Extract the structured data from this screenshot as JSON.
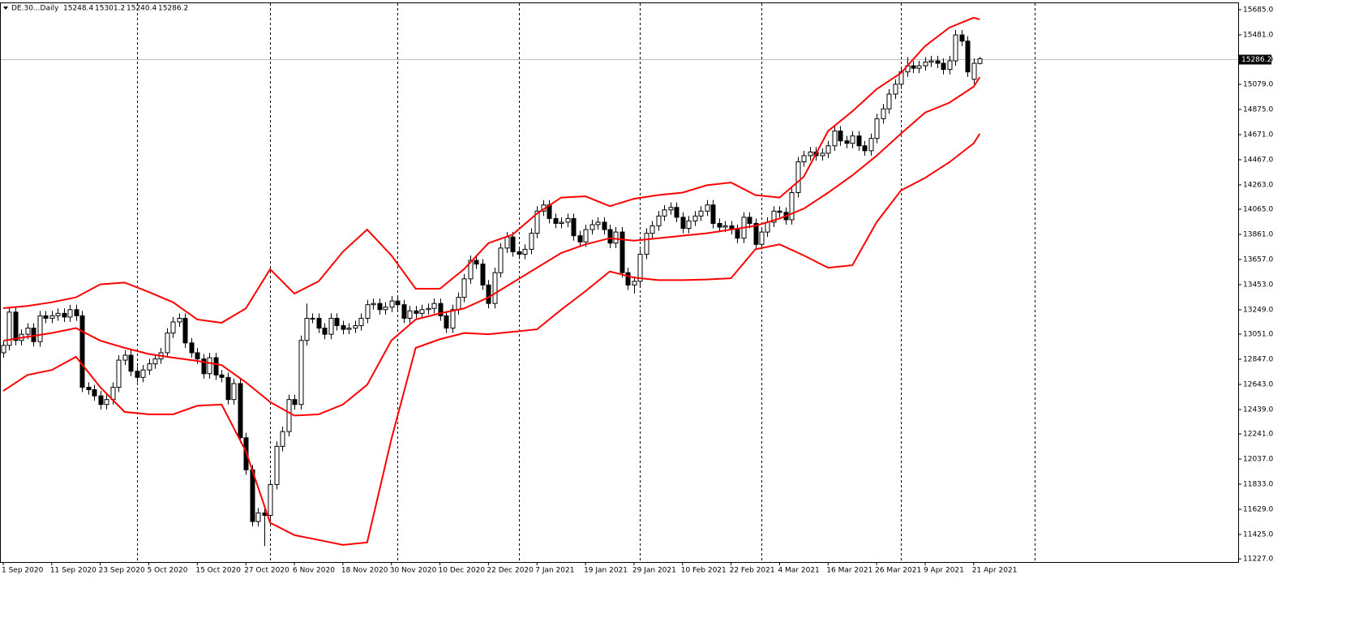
{
  "chart_data": {
    "type": "candlestick",
    "title": "DE.30...Daily",
    "categories": [
      "1 Sep 2020",
      null,
      null,
      null,
      null,
      null,
      null,
      null,
      "11 Sep 2020",
      null,
      null,
      null,
      null,
      null,
      null,
      null,
      "23 Sep 2020",
      null,
      null,
      null,
      null,
      null,
      null,
      null,
      "5 Oct 2020",
      null,
      null,
      null,
      null,
      null,
      null,
      null,
      "15 Oct 2020",
      null,
      null,
      null,
      null,
      null,
      null,
      null,
      "27 Oct 2020",
      null,
      null,
      null,
      null,
      null,
      null,
      null,
      "6 Nov 2020",
      null,
      null,
      null,
      null,
      null,
      null,
      null,
      "18 Nov 2020",
      null,
      null,
      null,
      null,
      null,
      null,
      null,
      "30 Nov 2020",
      null,
      null,
      null,
      null,
      null,
      null,
      null,
      "10 Dec 2020",
      null,
      null,
      null,
      null,
      null,
      null,
      null,
      "22 Dec 2020",
      null,
      null,
      null,
      null,
      null,
      null,
      null,
      "7 Jan 2021",
      null,
      null,
      null,
      null,
      null,
      null,
      null,
      "19 Jan 2021",
      null,
      null,
      null,
      null,
      null,
      null,
      null,
      "29 Jan 2021",
      null,
      null,
      null,
      null,
      null,
      null,
      null,
      "10 Feb 2021",
      null,
      null,
      null,
      null,
      null,
      null,
      null,
      "22 Feb 2021",
      null,
      null,
      null,
      null,
      null,
      null,
      null,
      "4 Mar 2021",
      null,
      null,
      null,
      null,
      null,
      null,
      null,
      "16 Mar 2021",
      null,
      null,
      null,
      null,
      null,
      null,
      null,
      "26 Mar 2021",
      null,
      null,
      null,
      null,
      null,
      null,
      null,
      "9 Apr 2021",
      null,
      null,
      null,
      null,
      null,
      null,
      null,
      "21 Apr 2021",
      null
    ],
    "open": [
      12900,
      12960,
      13230,
      13000,
      13050,
      13100,
      12990,
      13200,
      13180,
      13200,
      13220,
      13190,
      13250,
      13200,
      12620,
      12600,
      12550,
      12480,
      12520,
      12620,
      12840,
      12880,
      12750,
      12700,
      12760,
      12810,
      12850,
      12900,
      13060,
      13150,
      13180,
      12980,
      12900,
      12850,
      12730,
      12860,
      12720,
      12700,
      12520,
      12650,
      12210,
      11950,
      11530,
      11600,
      11580,
      11830,
      12140,
      12260,
      12520,
      12480,
      13000,
      13180,
      13180,
      13100,
      13050,
      13180,
      13120,
      13090,
      13100,
      13120,
      13180,
      13290,
      13300,
      13250,
      13270,
      13320,
      13290,
      13180,
      13240,
      13220,
      13250,
      13260,
      13300,
      13200,
      13100,
      13250,
      13350,
      13500,
      13650,
      13620,
      13450,
      13300,
      13550,
      13750,
      13840,
      13720,
      13700,
      13740,
      13870,
      14050,
      14100,
      13990,
      13950,
      13960,
      13990,
      13850,
      13800,
      13900,
      13940,
      13960,
      13900,
      13790,
      13880,
      13550,
      13450,
      13480,
      13700,
      13870,
      13930,
      14010,
      14060,
      14080,
      14000,
      13910,
      13970,
      14010,
      14050,
      14100,
      13950,
      13920,
      13930,
      13900,
      13830,
      14000,
      13950,
      13780,
      13880,
      13960,
      14050,
      14040,
      13980,
      14200,
      14450,
      14500,
      14530,
      14500,
      14520,
      14580,
      14700,
      14620,
      14600,
      14660,
      14580,
      14540,
      14640,
      14800,
      14880,
      15000,
      15080,
      15180,
      15230,
      15210,
      15230,
      15260,
      15270,
      15250,
      15200,
      15270,
      15480,
      15430,
      15120,
      15248.4
    ],
    "high": [
      13000,
      13270,
      13270,
      13090,
      13140,
      13140,
      13240,
      13240,
      13240,
      13260,
      13260,
      13290,
      13290,
      13240,
      12660,
      12640,
      12590,
      12560,
      12660,
      12880,
      12920,
      12920,
      12790,
      12800,
      12850,
      12890,
      12940,
      13100,
      13190,
      13220,
      13220,
      13020,
      12940,
      12890,
      12900,
      12900,
      12760,
      12740,
      12690,
      12690,
      12250,
      11990,
      11640,
      11640,
      11870,
      12180,
      12300,
      12560,
      12560,
      13040,
      13300,
      13220,
      13220,
      13140,
      13220,
      13220,
      13160,
      13140,
      13160,
      13220,
      13330,
      13340,
      13340,
      13310,
      13360,
      13360,
      13330,
      13280,
      13280,
      13290,
      13300,
      13340,
      13340,
      13240,
      13290,
      13390,
      13540,
      13690,
      13690,
      13660,
      13490,
      13590,
      13790,
      13880,
      13880,
      13760,
      13780,
      13910,
      14090,
      14140,
      14140,
      14030,
      14000,
      14030,
      14030,
      13890,
      13940,
      13980,
      14000,
      14000,
      13940,
      13920,
      13920,
      13590,
      13520,
      13740,
      13910,
      13970,
      14050,
      14100,
      14120,
      14120,
      14040,
      14010,
      14050,
      14090,
      14140,
      14140,
      13990,
      13970,
      13970,
      13940,
      14040,
      14040,
      13990,
      13920,
      14000,
      14090,
      14090,
      14080,
      14240,
      14490,
      14540,
      14570,
      14570,
      14560,
      14620,
      14740,
      14740,
      14660,
      14700,
      14700,
      14620,
      14680,
      14840,
      14920,
      15040,
      15120,
      15220,
      15300,
      15270,
      15270,
      15300,
      15310,
      15310,
      15290,
      15310,
      15520,
      15520,
      15470,
      15290,
      15301.2
    ],
    "low": [
      12860,
      12920,
      12960,
      12960,
      13010,
      12950,
      12950,
      13140,
      13140,
      13160,
      13150,
      13150,
      13160,
      12580,
      12560,
      12510,
      12440,
      12440,
      12480,
      12580,
      12800,
      12710,
      12660,
      12660,
      12720,
      12770,
      12810,
      12860,
      13020,
      13110,
      12940,
      12860,
      12810,
      12690,
      12690,
      12680,
      12660,
      12480,
      12480,
      12170,
      11910,
      11490,
      11490,
      11330,
      11540,
      11790,
      12100,
      12220,
      12440,
      12440,
      12960,
      13140,
      13060,
      13010,
      13010,
      13080,
      13050,
      13050,
      13060,
      13080,
      13140,
      13250,
      13210,
      13210,
      13230,
      13250,
      13140,
      13140,
      13180,
      13180,
      13210,
      13220,
      13160,
      13060,
      13060,
      13210,
      13310,
      13460,
      13580,
      13410,
      13260,
      13260,
      13510,
      13710,
      13680,
      13660,
      13660,
      13700,
      13830,
      14010,
      13950,
      13910,
      13910,
      13920,
      13810,
      13760,
      13760,
      13860,
      13900,
      13860,
      13750,
      13750,
      13510,
      13410,
      13380,
      13440,
      13660,
      13830,
      13890,
      13970,
      14020,
      13960,
      13870,
      13870,
      13930,
      13970,
      14010,
      13910,
      13880,
      13880,
      13860,
      13790,
      13790,
      13910,
      13740,
      13740,
      13840,
      13920,
      14000,
      13940,
      13940,
      14160,
      14410,
      14460,
      14460,
      14460,
      14480,
      14540,
      14580,
      14560,
      14560,
      14540,
      14500,
      14500,
      14600,
      14760,
      14840,
      14960,
      15040,
      15140,
      15170,
      15170,
      15190,
      15220,
      15210,
      15160,
      15160,
      15230,
      15390,
      15140,
      15080,
      15240.4
    ],
    "close": [
      12960,
      13230,
      13000,
      13050,
      13100,
      12990,
      13200,
      13180,
      13200,
      13220,
      13190,
      13250,
      13200,
      12620,
      12600,
      12550,
      12480,
      12520,
      12620,
      12840,
      12880,
      12750,
      12700,
      12760,
      12810,
      12850,
      12900,
      13060,
      13150,
      13180,
      12980,
      12900,
      12850,
      12730,
      12860,
      12720,
      12700,
      12520,
      12650,
      12210,
      11950,
      11530,
      11600,
      11580,
      11830,
      12140,
      12260,
      12520,
      12480,
      13000,
      13180,
      13180,
      13100,
      13050,
      13180,
      13120,
      13090,
      13100,
      13120,
      13180,
      13290,
      13300,
      13250,
      13270,
      13320,
      13290,
      13180,
      13240,
      13220,
      13250,
      13260,
      13300,
      13200,
      13100,
      13250,
      13350,
      13500,
      13650,
      13620,
      13450,
      13300,
      13550,
      13750,
      13840,
      13720,
      13700,
      13740,
      13870,
      14050,
      14100,
      13990,
      13950,
      13960,
      13990,
      13850,
      13800,
      13900,
      13940,
      13960,
      13900,
      13790,
      13880,
      13550,
      13450,
      13480,
      13700,
      13870,
      13930,
      14010,
      14060,
      14080,
      14000,
      13910,
      13970,
      14010,
      14050,
      14100,
      13950,
      13920,
      13930,
      13900,
      13830,
      14000,
      13950,
      13780,
      13880,
      13960,
      14050,
      14040,
      13980,
      14200,
      14450,
      14500,
      14530,
      14500,
      14520,
      14580,
      14700,
      14620,
      14600,
      14660,
      14580,
      14540,
      14640,
      14800,
      14880,
      15000,
      15080,
      15180,
      15230,
      15210,
      15230,
      15260,
      15270,
      15250,
      15200,
      15270,
      15480,
      15430,
      15180,
      15250,
      15286.2
    ],
    "bands": {
      "x": [
        0,
        4,
        8,
        12,
        16,
        20,
        24,
        28,
        32,
        36,
        40,
        44,
        48,
        52,
        56,
        60,
        64,
        68,
        72,
        76,
        80,
        84,
        88,
        92,
        96,
        100,
        104,
        108,
        112,
        116,
        120,
        124,
        128,
        132,
        136,
        140,
        144,
        148,
        152,
        156,
        160,
        161
      ],
      "series": [
        {
          "color": "#ff0000",
          "values": [
            13262,
            13280,
            13310,
            13350,
            13455,
            13470,
            13393,
            13310,
            13170,
            13143,
            13260,
            13578,
            13380,
            13480,
            13720,
            13900,
            13690,
            13420,
            13420,
            13580,
            13790,
            13860,
            14030,
            14160,
            14170,
            14090,
            14150,
            14180,
            14200,
            14260,
            14282,
            14180,
            14160,
            14330,
            14700,
            14860,
            15040,
            15171,
            15390,
            15540,
            15620,
            15606
          ]
        },
        {
          "color": "#ff0000",
          "values": [
            12998,
            13030,
            13060,
            13100,
            12998,
            12940,
            12890,
            12860,
            12834,
            12800,
            12660,
            12500,
            12390,
            12400,
            12480,
            12640,
            13000,
            13170,
            13220,
            13260,
            13350,
            13470,
            13590,
            13710,
            13780,
            13830,
            13810,
            13830,
            13850,
            13870,
            13900,
            13930,
            13990,
            14070,
            14200,
            14340,
            14500,
            14678,
            14850,
            14930,
            15060,
            15138
          ]
        },
        {
          "color": "#ff0000",
          "values": [
            12590,
            12720,
            12760,
            12867,
            12620,
            12420,
            12400,
            12400,
            12470,
            12480,
            12100,
            11520,
            11420,
            11380,
            11340,
            11360,
            12200,
            12940,
            13010,
            13060,
            13050,
            13070,
            13090,
            13250,
            13400,
            13560,
            13510,
            13490,
            13490,
            13495,
            13505,
            13740,
            13780,
            13690,
            13590,
            13610,
            13960,
            14217,
            14320,
            14447,
            14600,
            14678
          ]
        }
      ]
    },
    "xgrid": [
      22,
      44,
      65,
      85,
      105,
      125,
      148,
      170
    ],
    "ylim": [
      11201,
      15744
    ],
    "yticks": [
      {
        "value": 15685,
        "label": "15685.0"
      },
      {
        "value": 15481,
        "label": "15481.0"
      },
      {
        "value": 15279,
        "label": "15279.0"
      },
      {
        "value": 15079,
        "label": "15079.0"
      },
      {
        "value": 14875,
        "label": "14875.0"
      },
      {
        "value": 14671,
        "label": "14671.0"
      },
      {
        "value": 14467,
        "label": "14467.0"
      },
      {
        "value": 14263,
        "label": "14263.0"
      },
      {
        "value": 14065,
        "label": "14065.0"
      },
      {
        "value": 13861,
        "label": "13861.0"
      },
      {
        "value": 13657,
        "label": "13657.0"
      },
      {
        "value": 13453,
        "label": "13453.0"
      },
      {
        "value": 13249,
        "label": "13249.0"
      },
      {
        "value": 13051,
        "label": "13051.0"
      },
      {
        "value": 12847,
        "label": "12847.0"
      },
      {
        "value": 12643,
        "label": "12643.0"
      },
      {
        "value": 12439,
        "label": "12439.0"
      },
      {
        "value": 12241,
        "label": "12241.0"
      },
      {
        "value": 12037,
        "label": "12037.0"
      },
      {
        "value": 11833,
        "label": "11833.0"
      },
      {
        "value": 11629,
        "label": "11629.0"
      },
      {
        "value": 11425,
        "label": "11425.0"
      },
      {
        "value": 11227,
        "label": "11227.0"
      }
    ],
    "bull_color": "#ffffff",
    "bear_color": "#000000"
  }
}
